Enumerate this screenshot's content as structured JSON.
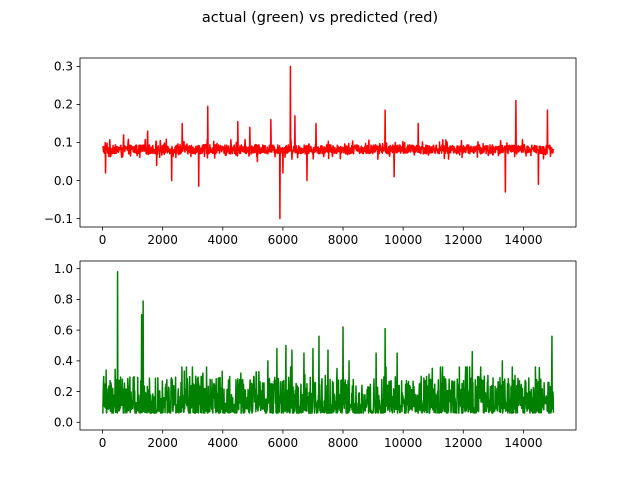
{
  "chart_data": [
    {
      "type": "line",
      "title": "actual (green) vs predicted (red)",
      "xlim": [
        -750,
        15750
      ],
      "ylim": [
        -0.122,
        0.322
      ],
      "xticks": [
        0,
        2000,
        4000,
        6000,
        8000,
        10000,
        12000,
        14000
      ],
      "xtick_labels": [
        "0",
        "2000",
        "4000",
        "6000",
        "8000",
        "10000",
        "12000",
        "14000"
      ],
      "yticks": [
        -0.1,
        0.0,
        0.1,
        0.2,
        0.3
      ],
      "ytick_labels": [
        "−0.1",
        "0.0",
        "0.1",
        "0.2",
        "0.3"
      ],
      "grid": false,
      "series": [
        {
          "color": "#ff0000",
          "n_points": 15000,
          "baseline": 0.082,
          "noise": 0.012,
          "range": [
            0.05,
            0.12
          ],
          "spikes": [
            [
              100,
              0.02
            ],
            [
              700,
              0.12
            ],
            [
              1500,
              0.13
            ],
            [
              1800,
              0.04
            ],
            [
              2300,
              0.0
            ],
            [
              2650,
              0.15
            ],
            [
              3200,
              -0.015
            ],
            [
              3500,
              0.195
            ],
            [
              4500,
              0.155
            ],
            [
              4900,
              0.14
            ],
            [
              5150,
              0.05
            ],
            [
              5600,
              0.16
            ],
            [
              5900,
              -0.1
            ],
            [
              6000,
              0.02
            ],
            [
              6250,
              0.3
            ],
            [
              6400,
              0.17
            ],
            [
              6800,
              0.0
            ],
            [
              7100,
              0.15
            ],
            [
              9400,
              0.185
            ],
            [
              9700,
              0.01
            ],
            [
              10500,
              0.15
            ],
            [
              13400,
              -0.03
            ],
            [
              13750,
              0.21
            ],
            [
              14500,
              -0.01
            ],
            [
              14800,
              0.185
            ]
          ]
        }
      ]
    },
    {
      "type": "line",
      "xlim": [
        -750,
        15750
      ],
      "ylim": [
        -0.05,
        1.05
      ],
      "xticks": [
        0,
        2000,
        4000,
        6000,
        8000,
        10000,
        12000,
        14000
      ],
      "xtick_labels": [
        "0",
        "2000",
        "4000",
        "6000",
        "8000",
        "10000",
        "12000",
        "14000"
      ],
      "yticks": [
        0.0,
        0.2,
        0.4,
        0.6,
        0.8,
        1.0
      ],
      "ytick_labels": [
        "0.0",
        "0.2",
        "0.4",
        "0.6",
        "0.8",
        "1.0"
      ],
      "grid": false,
      "series": [
        {
          "color": "#008000",
          "n_points": 15000,
          "baseline": 0.06,
          "noise": 0.08,
          "range": [
            0.0,
            0.3
          ],
          "spikes": [
            [
              120,
              0.34
            ],
            [
              500,
              0.98
            ],
            [
              1350,
              0.79
            ],
            [
              1300,
              0.7
            ],
            [
              2300,
              0.27
            ],
            [
              3100,
              0.3
            ],
            [
              3700,
              0.25
            ],
            [
              4600,
              0.32
            ],
            [
              5500,
              0.4
            ],
            [
              5800,
              0.48
            ],
            [
              6100,
              0.5
            ],
            [
              6300,
              0.47
            ],
            [
              6700,
              0.45
            ],
            [
              7000,
              0.48
            ],
            [
              7200,
              0.56
            ],
            [
              7500,
              0.47
            ],
            [
              7800,
              0.35
            ],
            [
              8000,
              0.62
            ],
            [
              8200,
              0.4
            ],
            [
              9100,
              0.45
            ],
            [
              9400,
              0.61
            ],
            [
              9800,
              0.45
            ],
            [
              10600,
              0.3
            ],
            [
              11300,
              0.3
            ],
            [
              12300,
              0.46
            ],
            [
              12700,
              0.3
            ],
            [
              13300,
              0.4
            ],
            [
              14200,
              0.2
            ],
            [
              14950,
              0.56
            ]
          ]
        }
      ]
    }
  ]
}
